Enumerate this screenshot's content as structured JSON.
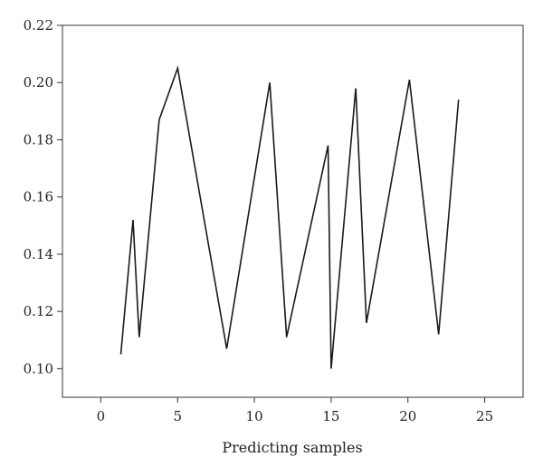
{
  "chart_data": {
    "type": "line",
    "title": "",
    "xlabel": "Predicting samples",
    "ylabel": "",
    "xlim": [
      -2.5,
      27.5
    ],
    "ylim": [
      0.09,
      0.22
    ],
    "xticks": [
      0,
      5,
      10,
      15,
      20,
      25
    ],
    "yticks": [
      0.1,
      0.12,
      0.14,
      0.16,
      0.18,
      0.2,
      0.22
    ],
    "xtick_labels": [
      "0",
      "5",
      "10",
      "15",
      "20",
      "25"
    ],
    "ytick_labels": [
      "0.10",
      "0.12",
      "0.14",
      "0.16",
      "0.18",
      "0.20",
      "0.22"
    ],
    "grid": false,
    "line_color": "#1a1a1a",
    "series": [
      {
        "x": [
          1.3,
          2.1,
          2.5,
          3.8,
          5.0,
          8.2,
          11.0,
          12.1,
          14.8,
          15.0,
          16.6,
          17.3,
          20.1,
          22.0,
          23.3
        ],
        "y": [
          0.105,
          0.152,
          0.111,
          0.187,
          0.205,
          0.107,
          0.2,
          0.111,
          0.178,
          0.1,
          0.198,
          0.116,
          0.201,
          0.112,
          0.194
        ]
      }
    ]
  }
}
